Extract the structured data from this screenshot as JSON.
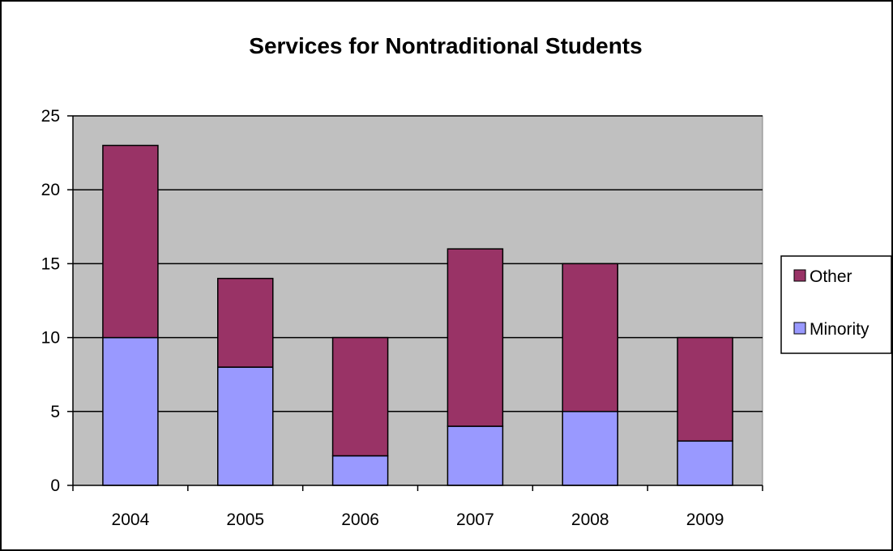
{
  "chart_data": {
    "type": "bar",
    "stacked": true,
    "title": "Services for Nontraditional Students",
    "xlabel": "",
    "ylabel": "",
    "categories": [
      "2004",
      "2005",
      "2006",
      "2007",
      "2008",
      "2009"
    ],
    "series": [
      {
        "name": "Minority",
        "values": [
          10,
          8,
          2,
          4,
          5,
          3
        ],
        "color": "#9999ff"
      },
      {
        "name": "Other",
        "values": [
          13,
          6,
          8,
          12,
          10,
          7
        ],
        "color": "#993366"
      }
    ],
    "ylim": [
      0,
      25
    ],
    "yticks": [
      0,
      5,
      10,
      15,
      20,
      25
    ],
    "grid": true,
    "plot_background": "#c0c0c0",
    "legend": {
      "position": "right",
      "order": [
        "Other",
        "Minority"
      ]
    }
  }
}
